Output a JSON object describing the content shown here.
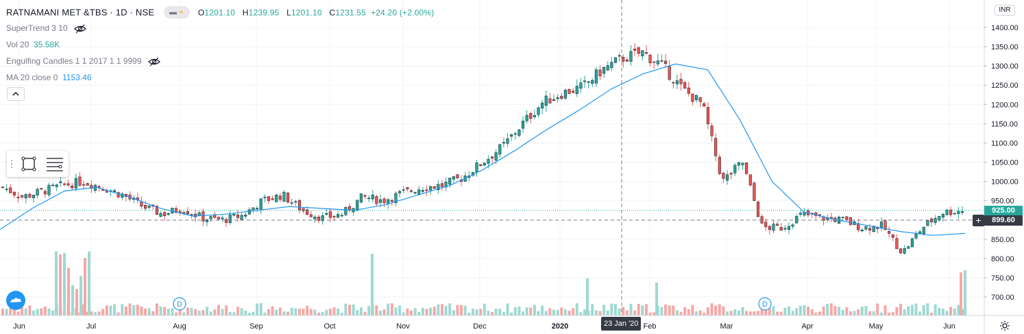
{
  "header": {
    "symbol_line": "RATNAMANI MET &TBS · 1D · NSE",
    "ohlc": {
      "open_label": "O",
      "open": "1201.10",
      "high_label": "H",
      "high": "1239.95",
      "low_label": "L",
      "low": "1201.10",
      "close_label": "C",
      "close": "1231.55",
      "change": "+24.20 (+2.00%)"
    }
  },
  "indicators": [
    {
      "name": "SuperTrend 3 10",
      "value": "",
      "hidden": true
    },
    {
      "name": "Vol 20",
      "value": "35.58K",
      "hidden": false
    },
    {
      "name": "Engulfing Candles 1 1 2017 1 1 9999",
      "value": "",
      "hidden": true
    },
    {
      "name": "MA 20 close 0",
      "value": "1153.46",
      "hidden": false
    }
  ],
  "toolbar": {
    "collapse_icon": "chevron-up-icon",
    "tools": [
      "rectangle-tool-icon",
      "lines-tool-icon"
    ]
  },
  "price_axis": {
    "currency": "INR",
    "ticks": [
      "1400.00",
      "1350.00",
      "1300.00",
      "1250.00",
      "1200.00",
      "1150.00",
      "1100.00",
      "1050.00",
      "1000.00",
      "950.00",
      "900.00",
      "850.00",
      "800.00",
      "750.00",
      "700.00"
    ],
    "last_price_tag": "925.00",
    "crosshair_price_tag": "899.60"
  },
  "time_axis": {
    "labels": [
      "Jun",
      "Jul",
      "Aug",
      "Sep",
      "Oct",
      "Nov",
      "Dec",
      "2020",
      "Feb",
      "Mar",
      "Apr",
      "May",
      "Jun"
    ],
    "crosshair_date": "23 Jan '20"
  },
  "markers": [
    "D",
    "D"
  ],
  "colors": {
    "up": "#26a69a",
    "down": "#ef5350",
    "vol_up": "#9fd9d2",
    "vol_down": "#f5a8a6",
    "ma": "#2196f3",
    "text": "#131722",
    "indicator_value_green": "#26a69a",
    "indicator_value_blue": "#2196f3"
  },
  "chart_data": {
    "type": "candlestick",
    "symbol": "RATNAMANI MET &TBS",
    "interval": "1D",
    "exchange": "NSE",
    "ylim": [
      680,
      1410
    ],
    "y_ticks": [
      700,
      750,
      800,
      850,
      900,
      950,
      1000,
      1050,
      1100,
      1150,
      1200,
      1250,
      1300,
      1350,
      1400
    ],
    "x_ticks": [
      "Jun",
      "Jul",
      "Aug",
      "Sep",
      "Oct",
      "Nov",
      "Dec",
      "2020",
      "Feb",
      "Mar",
      "Apr",
      "May",
      "Jun"
    ],
    "last_price": 925.0,
    "crosshair_price": 899.6,
    "crosshair_date": "23 Jan '20",
    "grid": true,
    "series": [
      {
        "name": "price",
        "close_path": [
          [
            "Jun",
            985
          ],
          [
            "Jun",
            960
          ],
          [
            "Jun",
            975
          ],
          [
            "Jun",
            990
          ],
          [
            "Jul",
            1000
          ],
          [
            "Jul",
            985
          ],
          [
            "Jul",
            965
          ],
          [
            "Aug",
            935
          ],
          [
            "Aug",
            915
          ],
          [
            "Aug",
            930
          ],
          [
            "Sep",
            905
          ],
          [
            "Sep",
            900
          ],
          [
            "Sep",
            912
          ],
          [
            "Oct",
            950
          ],
          [
            "Oct",
            965
          ],
          [
            "Oct",
            925
          ],
          [
            "Oct",
            905
          ],
          [
            "Nov",
            915
          ],
          [
            "Nov",
            960
          ],
          [
            "Nov",
            950
          ],
          [
            "Nov",
            970
          ],
          [
            "Dec",
            985
          ],
          [
            "Dec",
            990
          ],
          [
            "Dec",
            1010
          ],
          [
            "Dec",
            1050
          ],
          [
            "2020",
            1090
          ],
          [
            "2020",
            1150
          ],
          [
            "2020",
            1205
          ],
          [
            "2020",
            1230
          ],
          [
            "Feb",
            1245
          ],
          [
            "Feb",
            1290
          ],
          [
            "Feb",
            1320
          ],
          [
            "Mar",
            1335
          ],
          [
            "Mar",
            1300
          ],
          [
            "Mar",
            1240
          ],
          [
            "Mar",
            1200
          ],
          [
            "Mar",
            1000
          ],
          [
            "Mar",
            1050
          ],
          [
            "Mar",
            880
          ],
          [
            "Apr",
            880
          ],
          [
            "Apr",
            915
          ],
          [
            "Apr",
            905
          ],
          [
            "May",
            900
          ],
          [
            "May",
            880
          ],
          [
            "May",
            885
          ],
          [
            "May",
            815
          ],
          [
            "Jun",
            880
          ],
          [
            "Jun",
            920
          ],
          [
            "Jun",
            925
          ]
        ]
      },
      {
        "name": "MA 20 close 0",
        "path": [
          [
            "Jun",
            875
          ],
          [
            "Jun",
            930
          ],
          [
            "Jul",
            975
          ],
          [
            "Jul",
            985
          ],
          [
            "Aug",
            960
          ],
          [
            "Aug",
            930
          ],
          [
            "Sep",
            910
          ],
          [
            "Sep",
            915
          ],
          [
            "Oct",
            925
          ],
          [
            "Oct",
            935
          ],
          [
            "Oct",
            930
          ],
          [
            "Nov",
            925
          ],
          [
            "Nov",
            940
          ],
          [
            "Dec",
            965
          ],
          [
            "Dec",
            990
          ],
          [
            "2020",
            1030
          ],
          [
            "2020",
            1080
          ],
          [
            "2020",
            1135
          ],
          [
            "Feb",
            1185
          ],
          [
            "Feb",
            1240
          ],
          [
            "Mar",
            1280
          ],
          [
            "Mar",
            1305
          ],
          [
            "Mar",
            1290
          ],
          [
            "Apr",
            1160
          ],
          [
            "Apr",
            1000
          ],
          [
            "Apr",
            920
          ],
          [
            "May",
            900
          ],
          [
            "May",
            885
          ],
          [
            "May",
            870
          ],
          [
            "Jun",
            860
          ],
          [
            "Jun",
            865
          ]
        ]
      }
    ],
    "volume": {
      "label": "Vol 20",
      "last": "35.58K",
      "spikes": [
        {
          "x": "Jul",
          "relative": 0.78
        },
        {
          "x": "Oct",
          "relative": 0.75
        },
        {
          "x": "2020",
          "relative": 0.45
        },
        {
          "x": "Feb",
          "relative": 0.4
        },
        {
          "x": "Jun",
          "relative": 0.55
        }
      ]
    }
  }
}
